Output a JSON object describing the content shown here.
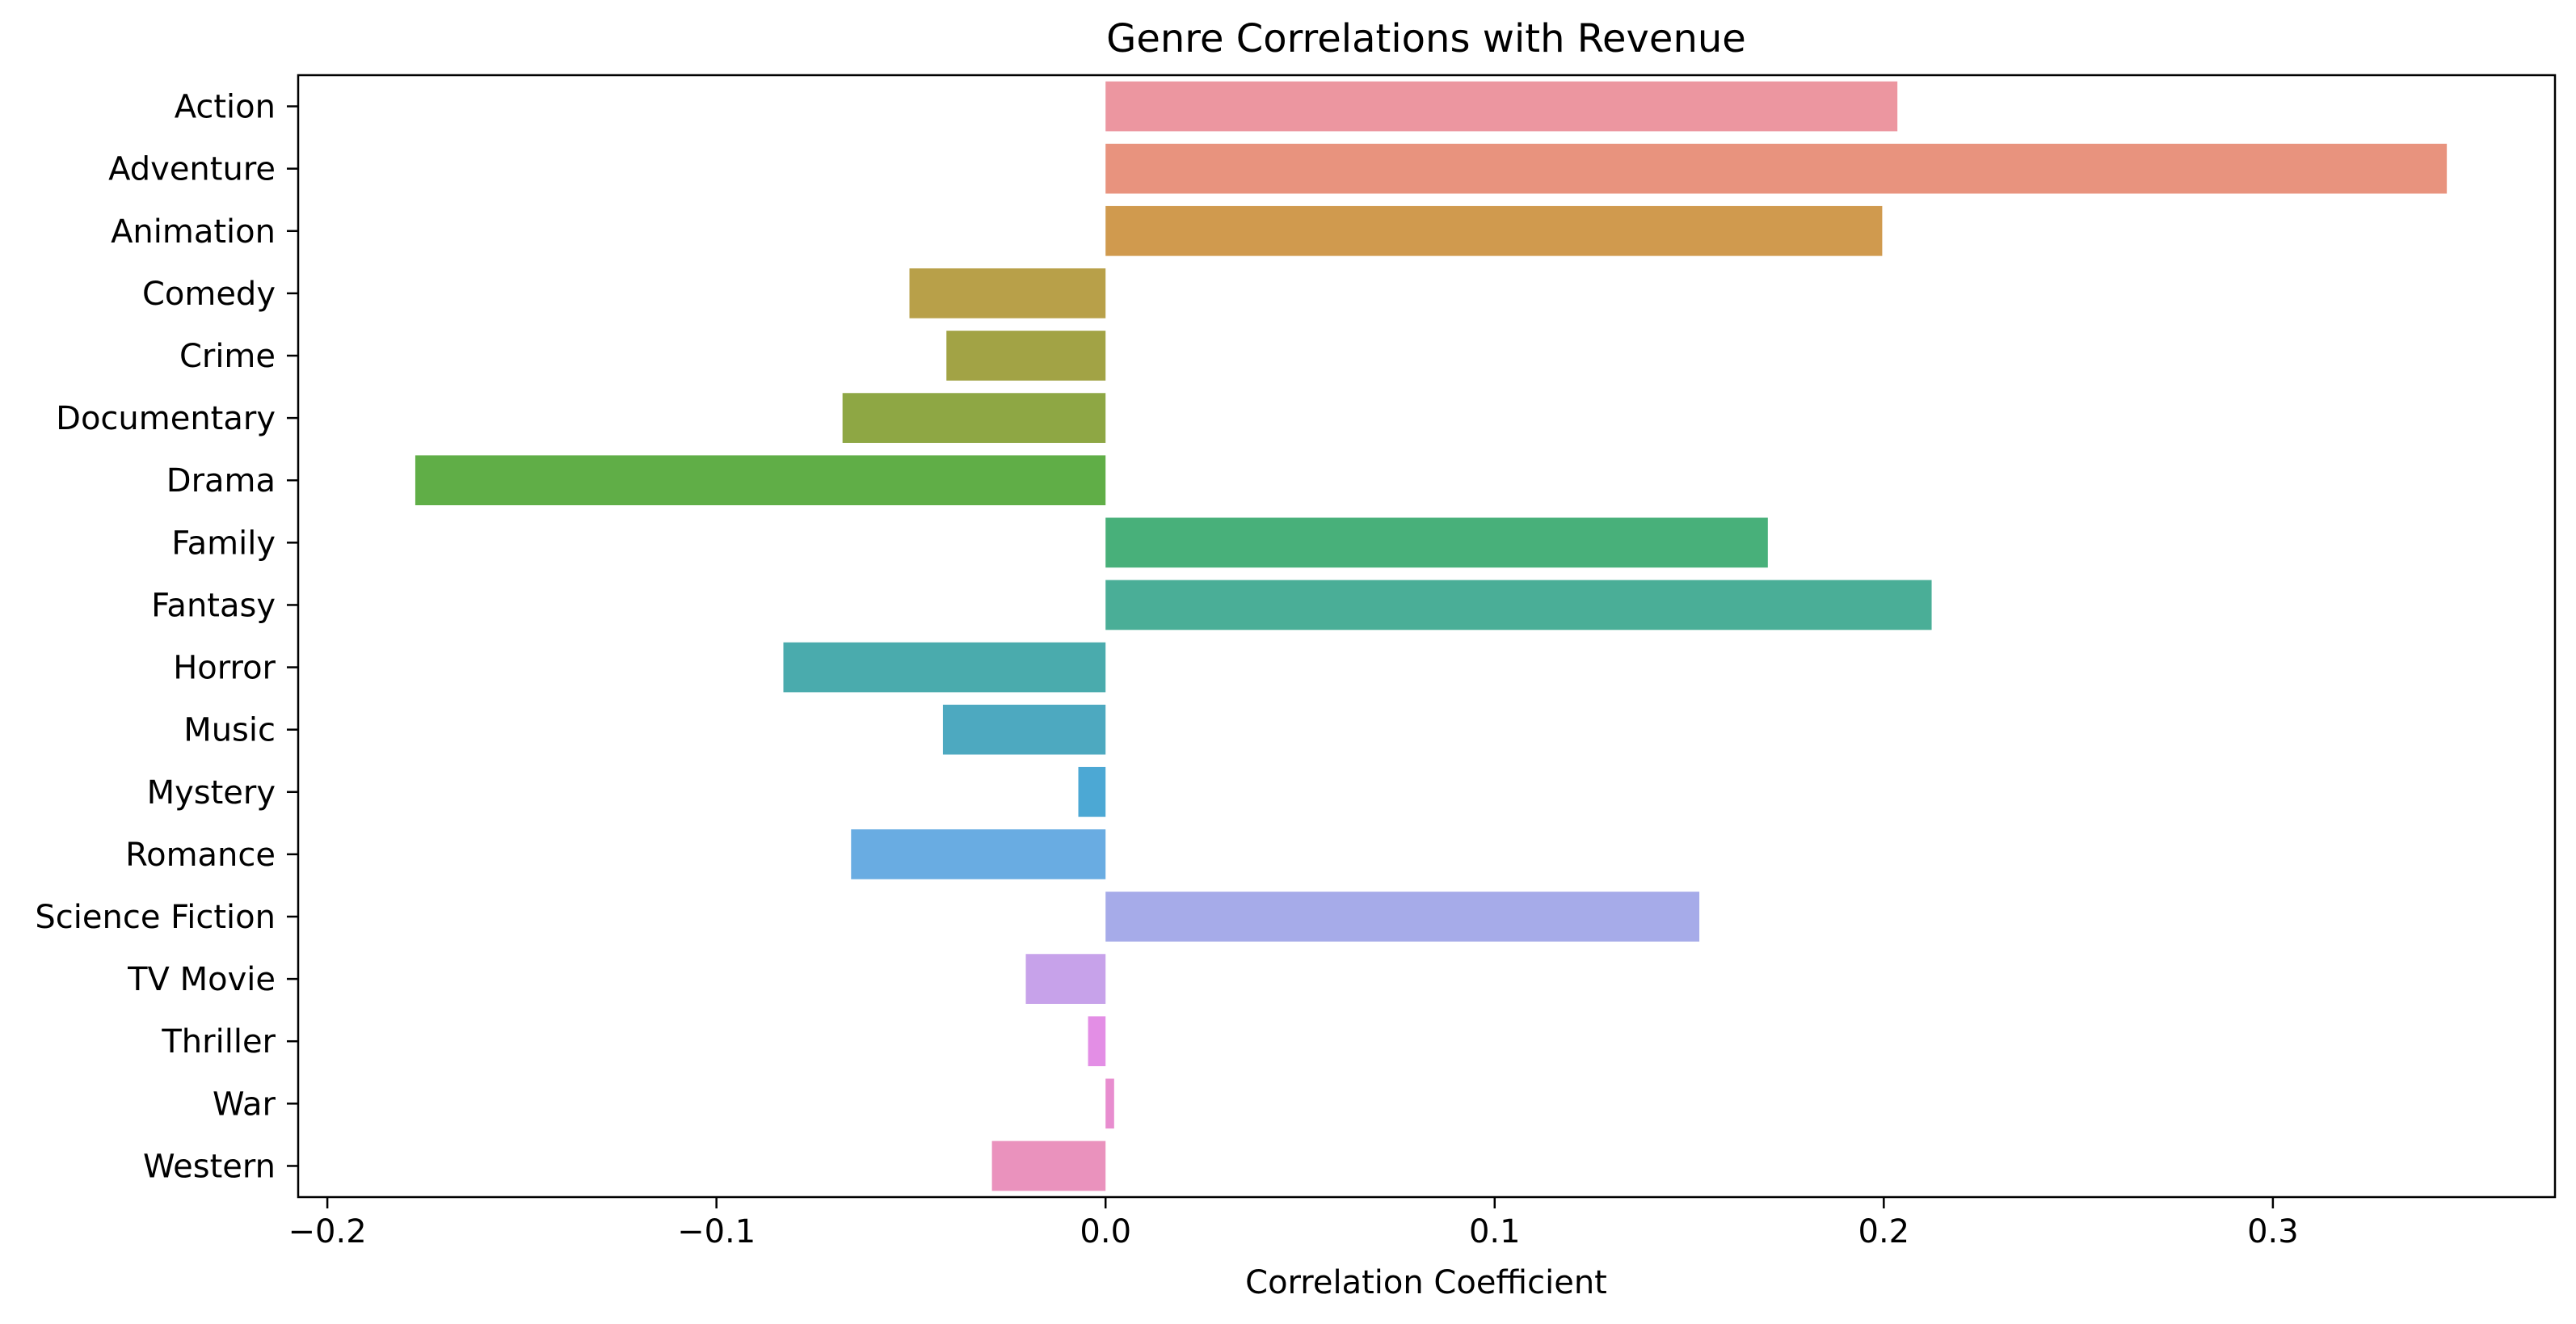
{
  "chart_data": {
    "type": "bar",
    "orientation": "horizontal",
    "title": "Genre Correlations with Revenue",
    "xlabel": "Correlation Coefficient",
    "ylabel": "",
    "xlim": [
      -0.2075,
      0.3725
    ],
    "x_ticks": [
      -0.2,
      -0.1,
      0.0,
      0.1,
      0.2,
      0.3
    ],
    "x_tick_labels": [
      "−0.2",
      "−0.1",
      "0.0",
      "0.1",
      "0.2",
      "0.3"
    ],
    "grid": false,
    "legend": "none",
    "categories": [
      "Action",
      "Adventure",
      "Animation",
      "Comedy",
      "Crime",
      "Documentary",
      "Drama",
      "Family",
      "Fantasy",
      "Horror",
      "Music",
      "Mystery",
      "Romance",
      "Science Fiction",
      "TV Movie",
      "Thriller",
      "War",
      "Western"
    ],
    "values": [
      0.2035,
      0.3447,
      0.1996,
      -0.0504,
      -0.0409,
      -0.0676,
      -0.1774,
      0.1702,
      0.2123,
      -0.0828,
      -0.0418,
      -0.007,
      -0.0654,
      0.1526,
      -0.0205,
      -0.0045,
      0.0022,
      -0.0292
    ],
    "colors": [
      "#EC96A0",
      "#E8937E",
      "#D09A4E",
      "#B8A049",
      "#A2A345",
      "#8EA744",
      "#60AE47",
      "#48B07A",
      "#4AAE97",
      "#4AABAD",
      "#4DA9C0",
      "#4CA8D4",
      "#69ACE2",
      "#A6ABE9",
      "#C7A2EA",
      "#E38EE5",
      "#E88DCF",
      "#EA92BD"
    ]
  }
}
